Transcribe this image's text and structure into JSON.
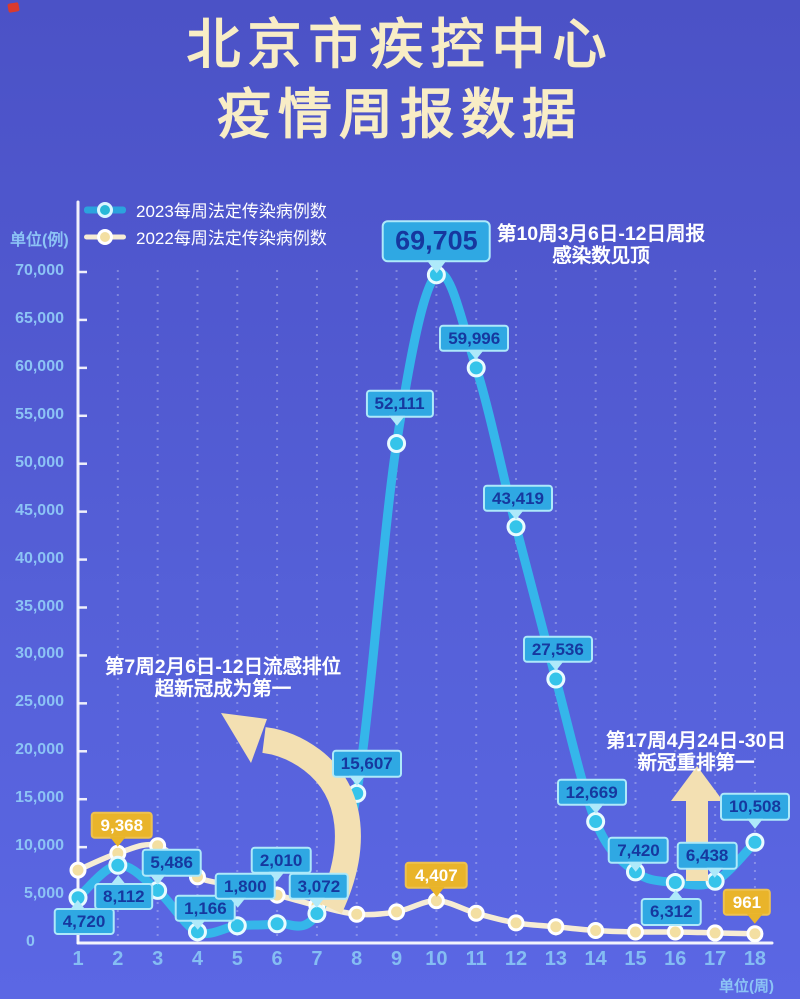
{
  "page": {
    "title_lines": [
      "北京市疾控中心",
      "疫情周报数据"
    ]
  },
  "legend": {
    "items": [
      {
        "label": "2023每周法定传染病例数",
        "color": "#35b6ea"
      },
      {
        "label": "2022每周法定传染病例数",
        "color": "#f6ecd4"
      }
    ]
  },
  "axis_units": {
    "y": "单位(例)",
    "x": "单位(周)"
  },
  "chart_data": {
    "type": "line",
    "x": [
      1,
      2,
      3,
      4,
      5,
      6,
      7,
      8,
      9,
      10,
      11,
      12,
      13,
      14,
      15,
      16,
      17,
      18
    ],
    "xlabel": "单位(周)",
    "ylabel": "单位(例)",
    "ylim": [
      0,
      70000
    ],
    "y_ticks": [
      0,
      5000,
      10000,
      15000,
      20000,
      25000,
      30000,
      35000,
      40000,
      45000,
      50000,
      55000,
      60000,
      65000,
      70000
    ],
    "grid": "vertical-dashed",
    "legend_position": "top-left",
    "series": [
      {
        "name": "2023每周法定传染病例数",
        "color": "#35b6ea",
        "values": [
          4720,
          8112,
          5486,
          1166,
          1800,
          2010,
          3072,
          15607,
          52111,
          69705,
          59996,
          43419,
          27536,
          12669,
          7420,
          6312,
          6438,
          10508
        ]
      },
      {
        "name": "2022每周法定传染病例数",
        "color": "#f6ecd4",
        "values": [
          7600,
          9368,
          10150,
          6900,
          6000,
          5000,
          3900,
          3000,
          3250,
          4407,
          3100,
          2100,
          1700,
          1300,
          1150,
          1150,
          1050,
          961
        ],
        "note": "only weeks 2, 10 and 18 carry labels (9,368 / 4,407 / 961); other 2022 values estimated from plot"
      }
    ],
    "point_labels": [
      {
        "series": 0,
        "week": 1,
        "text": "4,720"
      },
      {
        "series": 0,
        "week": 2,
        "text": "8,112"
      },
      {
        "series": 0,
        "week": 3,
        "text": "5,486"
      },
      {
        "series": 0,
        "week": 4,
        "text": "1,166"
      },
      {
        "series": 0,
        "week": 5,
        "text": "1,800"
      },
      {
        "series": 0,
        "week": 6,
        "text": "2,010"
      },
      {
        "series": 0,
        "week": 7,
        "text": "3,072"
      },
      {
        "series": 0,
        "week": 8,
        "text": "15,607"
      },
      {
        "series": 0,
        "week": 9,
        "text": "52,111"
      },
      {
        "series": 0,
        "week": 10,
        "text": "69,705"
      },
      {
        "series": 0,
        "week": 11,
        "text": "59,996"
      },
      {
        "series": 0,
        "week": 12,
        "text": "43,419"
      },
      {
        "series": 0,
        "week": 13,
        "text": "27,536"
      },
      {
        "series": 0,
        "week": 14,
        "text": "12,669"
      },
      {
        "series": 0,
        "week": 15,
        "text": "7,420"
      },
      {
        "series": 0,
        "week": 16,
        "text": "6,312"
      },
      {
        "series": 0,
        "week": 17,
        "text": "6,438"
      },
      {
        "series": 0,
        "week": 18,
        "text": "10,508"
      },
      {
        "series": 1,
        "week": 2,
        "text": "9,368"
      },
      {
        "series": 1,
        "week": 10,
        "text": "4,407"
      },
      {
        "series": 1,
        "week": 18,
        "text": "961"
      }
    ],
    "annotations": [
      {
        "id": "peak",
        "lines": [
          "第10周3月6日-12日周报",
          "感染数见顶"
        ]
      },
      {
        "id": "flu",
        "lines": [
          "第7周2月6日-12日流感排位",
          "超新冠成为第一"
        ]
      },
      {
        "id": "covid",
        "lines": [
          "第17周4月24日-30日",
          "新冠重排第一"
        ]
      }
    ]
  },
  "colors": {
    "background_top": "#4b52c6",
    "background_bottom": "#5b67e4",
    "title_text": "#f8edc6",
    "axis_text": "#8cc3f5",
    "axis_line": "#ffffff",
    "label_blue_bg": "#2fa8e3",
    "label_blue_border": "#aee9fa",
    "label_blue_text": "#16389f",
    "label_gold_bg": "#e9b42a",
    "label_gold_text": "#ffffff",
    "line_2023": "#35b6ea",
    "line_2022": "#f6ecd4",
    "dot_2022_fill": "#f3dfa2",
    "arrow": "#f3e0b2",
    "annotation_text": "#ffffff"
  }
}
